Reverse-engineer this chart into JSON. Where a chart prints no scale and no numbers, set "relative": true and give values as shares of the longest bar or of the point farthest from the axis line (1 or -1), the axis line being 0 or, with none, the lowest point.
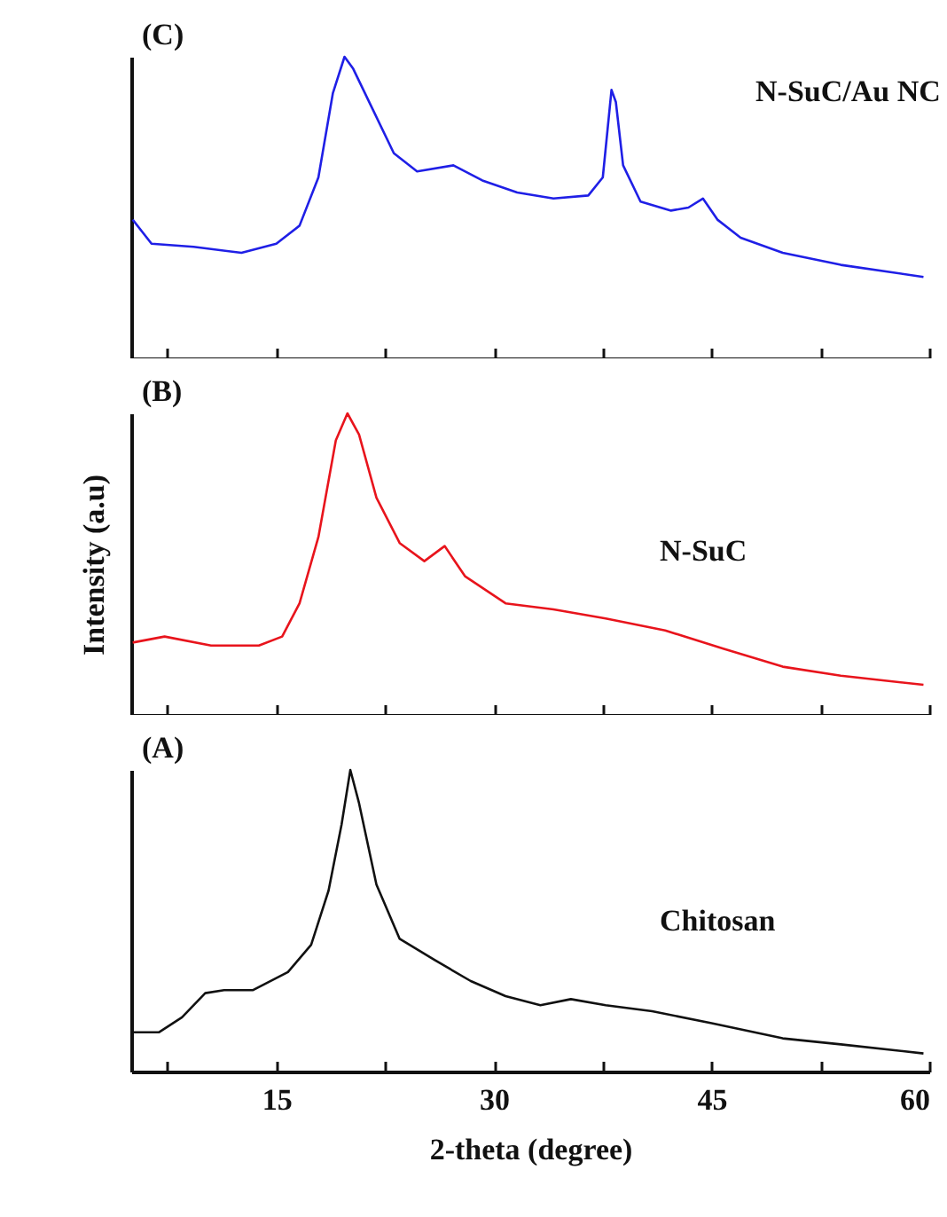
{
  "chart_data": [
    {
      "type": "line",
      "relative": true,
      "tick_labels": false,
      "annotations": [
        "(C)"
      ],
      "xlim": [
        5,
        60
      ],
      "xticks": [
        {
          "value": 7.5,
          "label": null
        },
        15,
        {
          "value": 22.5,
          "label": null
        },
        30,
        {
          "value": 37.5,
          "label": null
        },
        45,
        {
          "value": 52.5,
          "label": null
        },
        60
      ],
      "series": [
        {
          "name": "N-SuC/Au NC",
          "color": "#1f1fe6",
          "x": [
            5.1,
            6.4,
            9.3,
            12.6,
            15,
            16.6,
            17.9,
            18.9,
            19.7,
            20.3,
            21.5,
            23.1,
            24.7,
            27.2,
            29.2,
            31.6,
            34.1,
            36.5,
            37.5,
            38.1,
            38.4,
            38.9,
            40.1,
            42.2,
            43.4,
            44.4,
            45.4,
            47.0,
            49.9,
            53.9,
            59.6
          ],
          "values": [
            0.46,
            0.38,
            0.37,
            0.35,
            0.38,
            0.44,
            0.6,
            0.88,
            1.0,
            0.96,
            0.84,
            0.68,
            0.62,
            0.64,
            0.59,
            0.55,
            0.53,
            0.54,
            0.6,
            0.89,
            0.85,
            0.64,
            0.52,
            0.49,
            0.5,
            0.53,
            0.46,
            0.4,
            0.35,
            0.31,
            0.27
          ]
        }
      ]
    },
    {
      "type": "line",
      "relative": true,
      "tick_labels": false,
      "ylabel": "Intensity (a.u)",
      "annotations": [
        "(B)"
      ],
      "xlim": [
        5,
        60
      ],
      "xticks": [
        {
          "value": 7.5,
          "label": null
        },
        15,
        {
          "value": 22.5,
          "label": null
        },
        30,
        {
          "value": 37.5,
          "label": null
        },
        45,
        {
          "value": 52.5,
          "label": null
        },
        60
      ],
      "series": [
        {
          "name": "N-SuC",
          "color": "#e8141c",
          "x": [
            5.1,
            7.3,
            10.5,
            13.8,
            15.4,
            16.6,
            17.9,
            19.1,
            19.9,
            20.7,
            21.9,
            23.5,
            25.2,
            26.6,
            28.0,
            30.8,
            34.1,
            37.7,
            41.8,
            45.8,
            49.9,
            53.9,
            59.6
          ],
          "values": [
            0.24,
            0.26,
            0.23,
            0.23,
            0.26,
            0.37,
            0.59,
            0.91,
            1.0,
            0.93,
            0.72,
            0.57,
            0.51,
            0.56,
            0.46,
            0.37,
            0.35,
            0.32,
            0.28,
            0.22,
            0.16,
            0.13,
            0.1
          ]
        }
      ]
    },
    {
      "type": "line",
      "relative": true,
      "tick_labels": "x",
      "xlabel": "2-theta (degree)",
      "annotations": [
        "(A)"
      ],
      "xlim": [
        5,
        60
      ],
      "xticks": [
        {
          "value": 7.5,
          "label": null
        },
        15,
        {
          "value": 22.5,
          "label": null
        },
        30,
        {
          "value": 37.5,
          "label": null
        },
        45,
        {
          "value": 52.5,
          "label": null
        },
        60
      ],
      "series": [
        {
          "name": "Chitosan",
          "color": "#111111",
          "x": [
            5.1,
            6.9,
            8.5,
            10.1,
            11.4,
            13.4,
            15.8,
            17.4,
            18.6,
            19.5,
            20.1,
            20.7,
            21.9,
            23.5,
            25.9,
            28.4,
            30.8,
            33.2,
            35.3,
            37.7,
            40.9,
            45.0,
            49.9,
            53.9,
            59.6
          ],
          "values": [
            0.13,
            0.13,
            0.18,
            0.26,
            0.27,
            0.27,
            0.33,
            0.42,
            0.6,
            0.82,
            1.0,
            0.89,
            0.62,
            0.44,
            0.37,
            0.3,
            0.25,
            0.22,
            0.24,
            0.22,
            0.2,
            0.16,
            0.11,
            0.09,
            0.06
          ]
        }
      ]
    }
  ]
}
